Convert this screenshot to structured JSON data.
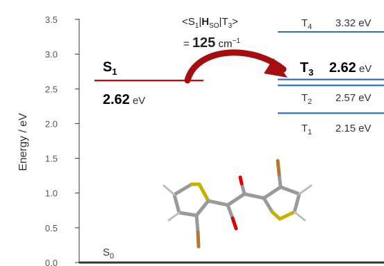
{
  "chart_data": {
    "type": "energy-level diagram",
    "ylabel": "Energy / eV",
    "ylim": [
      0,
      3.5
    ],
    "yticks": [
      "0.0",
      "0.5",
      "1.0",
      "1.5",
      "2.0",
      "2.5",
      "3.0",
      "3.5"
    ],
    "levels": [
      {
        "state": "S0",
        "energy": 0.0,
        "color": "#333333"
      },
      {
        "state": "S1",
        "energy": 2.62,
        "label": "S",
        "sub": "1",
        "value": "2.62",
        "unit": "eV",
        "color": "#c00000"
      },
      {
        "state": "T1",
        "energy": 2.15,
        "label": "T",
        "sub": "1",
        "value": "2.15",
        "unit": "eV",
        "color": "#2e75b6"
      },
      {
        "state": "T2",
        "energy": 2.57,
        "label": "T",
        "sub": "2",
        "value": "2.57",
        "unit": "eV",
        "color": "#2e75b6"
      },
      {
        "state": "T3",
        "energy": 2.62,
        "label": "T",
        "sub": "3",
        "value": "2.62",
        "unit": "eV",
        "color": "#2e75b6"
      },
      {
        "state": "T4",
        "energy": 3.32,
        "label": "T",
        "sub": "4",
        "value": "3.32",
        "unit": "eV",
        "color": "#2e75b6"
      }
    ],
    "soc": {
      "line1": {
        "open": "<S",
        "s1": "1",
        "bar1": "|",
        "h": "H",
        "hsub": "SO",
        "bar2": "|T",
        "t3": "3",
        "close": ">"
      },
      "line2": {
        "eq": "= ",
        "value": "125",
        "unit": " cm",
        "exp": "−1"
      }
    },
    "s0_label": {
      "label": "S",
      "sub": "0"
    },
    "colors": {
      "singlet": "#c00000",
      "triplet": "#2e75b6",
      "arrow": "#a50e0e",
      "axis": "#333333"
    }
  }
}
